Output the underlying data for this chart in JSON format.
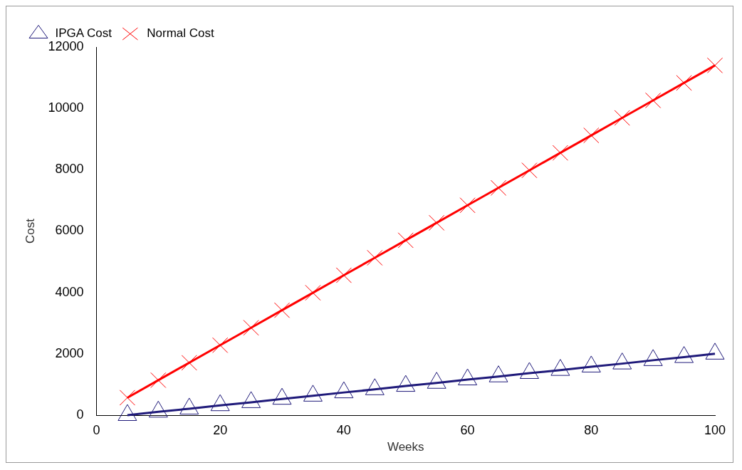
{
  "chart_data": {
    "type": "line",
    "xlabel": "Weeks",
    "ylabel": "Cost",
    "x": [
      5,
      10,
      15,
      20,
      25,
      30,
      35,
      40,
      45,
      50,
      55,
      60,
      65,
      70,
      75,
      80,
      85,
      90,
      95,
      100
    ],
    "series": [
      {
        "name": "IPGA Cost",
        "color": "#1f1a7a",
        "marker": "triangle",
        "values": [
          0,
          110,
          210,
          320,
          420,
          530,
          630,
          740,
          840,
          950,
          1050,
          1160,
          1260,
          1370,
          1470,
          1580,
          1680,
          1790,
          1890,
          2000
        ]
      },
      {
        "name": "Normal Cost",
        "color": "#ff0000",
        "marker": "cross",
        "values": [
          570,
          1140,
          1710,
          2280,
          2850,
          3420,
          3990,
          4560,
          5130,
          5700,
          6270,
          6840,
          7410,
          7980,
          8550,
          9120,
          9690,
          10260,
          10830,
          11400
        ]
      }
    ],
    "xlim": [
      0,
      100
    ],
    "xticks": [
      0,
      20,
      40,
      60,
      80,
      100
    ],
    "ylim": [
      0,
      12000
    ],
    "yticks": [
      0,
      2000,
      4000,
      6000,
      8000,
      10000,
      12000
    ],
    "grid": false,
    "legend": "top left",
    "line_style": "solid"
  }
}
